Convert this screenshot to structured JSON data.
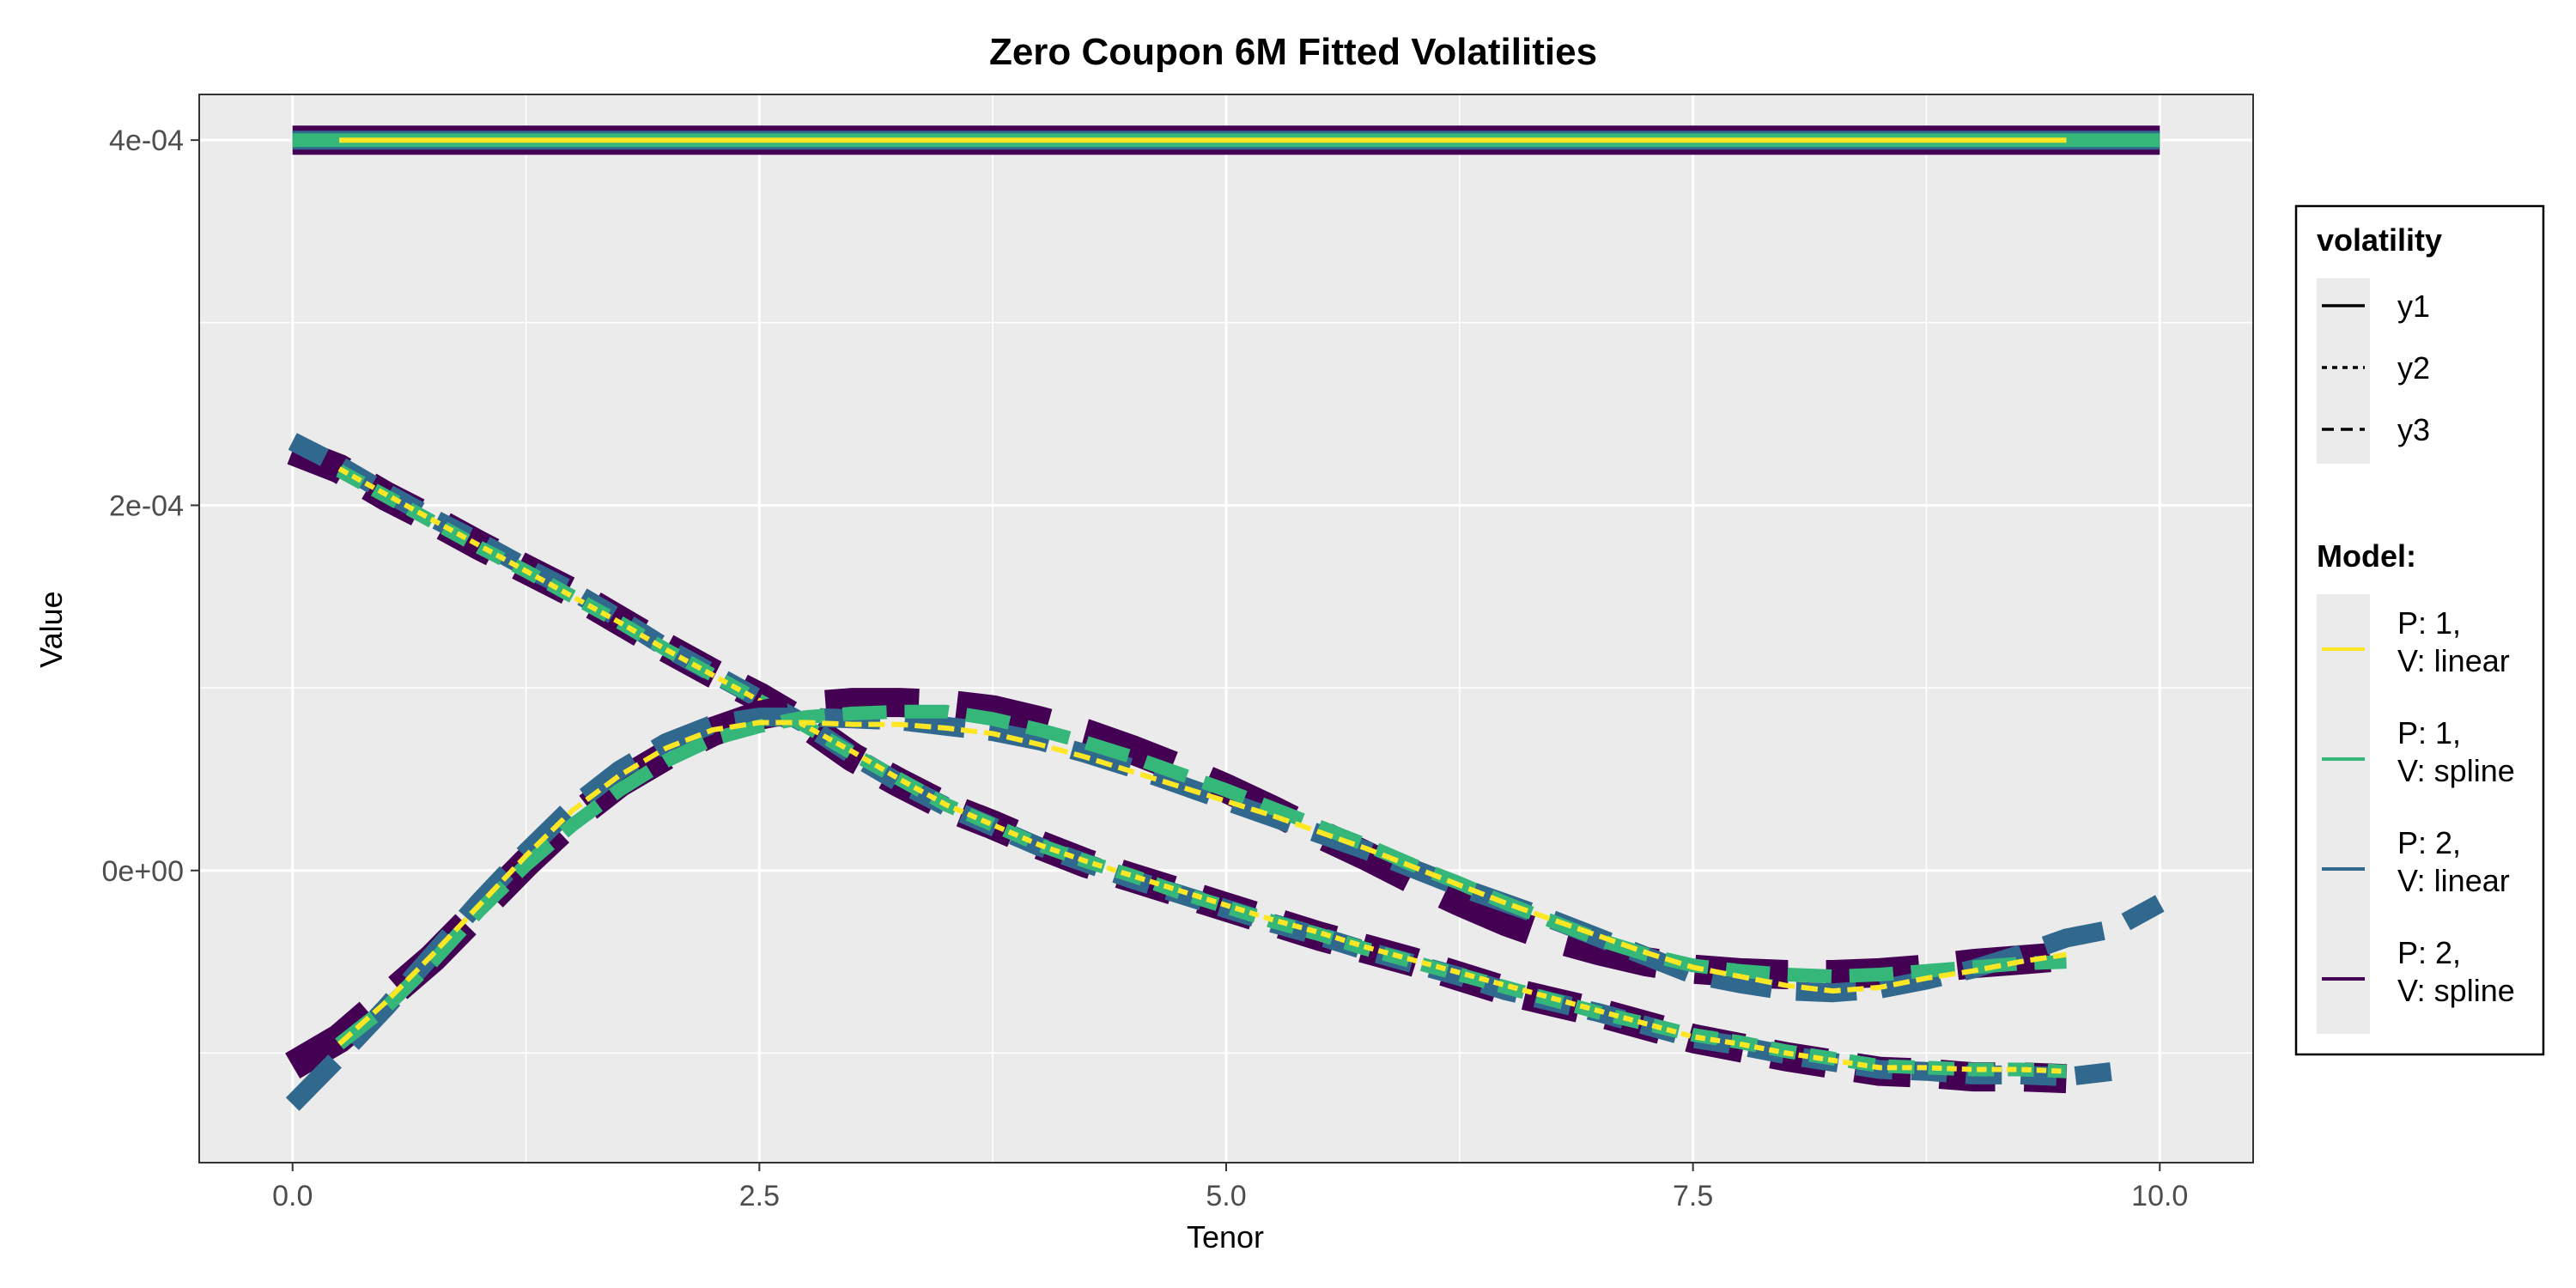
{
  "chart_data": {
    "type": "line",
    "title": "Zero Coupon 6M Fitted Volatilities",
    "xlabel": "Tenor",
    "ylabel": "Value",
    "xlim": [
      -0.5,
      10.5
    ],
    "ylim": [
      -0.00016,
      0.000425
    ],
    "x_ticks": [
      0,
      2.5,
      5,
      7.5,
      10
    ],
    "x_tick_labels": [
      "0.0",
      "2.5",
      "5.0",
      "7.5",
      "10.0"
    ],
    "y_ticks": [
      0,
      0.0002,
      0.0004
    ],
    "y_tick_labels": [
      "0e+00",
      "2e-04",
      "4e-04"
    ],
    "grid": true,
    "legend_position": "right",
    "legends": [
      {
        "title": "volatility",
        "items": [
          {
            "label": "y1",
            "linetype": "solid"
          },
          {
            "label": "y2",
            "linetype": "dotted"
          },
          {
            "label": "y3",
            "linetype": "dashed"
          }
        ]
      },
      {
        "title": "Model:",
        "items": [
          {
            "label_lines": [
              "P: 1,",
              "V: linear"
            ],
            "color": "#FDE725"
          },
          {
            "label_lines": [
              "P: 1,",
              "V: spline"
            ],
            "color": "#35B779"
          },
          {
            "label_lines": [
              "P: 2,",
              "V: linear"
            ],
            "color": "#31688E"
          },
          {
            "label_lines": [
              "P: 2,",
              "V: spline"
            ],
            "color": "#440154"
          }
        ]
      }
    ],
    "x": [
      0.0,
      0.25,
      0.5,
      0.75,
      1.0,
      1.25,
      1.5,
      1.75,
      2.0,
      2.25,
      2.5,
      2.75,
      3.0,
      3.25,
      3.5,
      3.75,
      4.0,
      4.25,
      4.5,
      4.75,
      5.0,
      5.25,
      5.5,
      5.75,
      6.0,
      6.25,
      6.5,
      6.75,
      7.0,
      7.25,
      7.5,
      7.75,
      8.0,
      8.25,
      8.5,
      8.75,
      9.0,
      9.25,
      9.5,
      9.75,
      10.0
    ],
    "series": [
      {
        "volatility": "y1",
        "model": "P: 2, V: spline",
        "values": [
          0.0004,
          0.0004,
          0.0004,
          0.0004,
          0.0004,
          0.0004,
          0.0004,
          0.0004,
          0.0004,
          0.0004,
          0.0004,
          0.0004,
          0.0004,
          0.0004,
          0.0004,
          0.0004,
          0.0004,
          0.0004,
          0.0004,
          0.0004,
          0.0004,
          0.0004,
          0.0004,
          0.0004,
          0.0004,
          0.0004,
          0.0004,
          0.0004,
          0.0004,
          0.0004,
          0.0004,
          0.0004,
          0.0004,
          0.0004,
          0.0004,
          0.0004,
          0.0004,
          0.0004,
          0.0004,
          0.0004,
          0.0004
        ]
      },
      {
        "volatility": "y1",
        "model": "P: 2, V: linear",
        "values": [
          0.0004,
          0.0004,
          0.0004,
          0.0004,
          0.0004,
          0.0004,
          0.0004,
          0.0004,
          0.0004,
          0.0004,
          0.0004,
          0.0004,
          0.0004,
          0.0004,
          0.0004,
          0.0004,
          0.0004,
          0.0004,
          0.0004,
          0.0004,
          0.0004,
          0.0004,
          0.0004,
          0.0004,
          0.0004,
          0.0004,
          0.0004,
          0.0004,
          0.0004,
          0.0004,
          0.0004,
          0.0004,
          0.0004,
          0.0004,
          0.0004,
          0.0004,
          0.0004,
          0.0004,
          0.0004,
          0.0004,
          0.0004
        ]
      },
      {
        "volatility": "y1",
        "model": "P: 1, V: spline",
        "values": [
          0.0004,
          0.0004,
          0.0004,
          0.0004,
          0.0004,
          0.0004,
          0.0004,
          0.0004,
          0.0004,
          0.0004,
          0.0004,
          0.0004,
          0.0004,
          0.0004,
          0.0004,
          0.0004,
          0.0004,
          0.0004,
          0.0004,
          0.0004,
          0.0004,
          0.0004,
          0.0004,
          0.0004,
          0.0004,
          0.0004,
          0.0004,
          0.0004,
          0.0004,
          0.0004,
          0.0004,
          0.0004,
          0.0004,
          0.0004,
          0.0004,
          0.0004,
          0.0004,
          0.0004,
          0.0004,
          0.0004,
          0.0004
        ]
      },
      {
        "volatility": "y1",
        "model": "P: 1, V: linear",
        "values": [
          null,
          0.0004,
          0.0004,
          0.0004,
          0.0004,
          0.0004,
          0.0004,
          0.0004,
          0.0004,
          0.0004,
          0.0004,
          0.0004,
          0.0004,
          0.0004,
          0.0004,
          0.0004,
          0.0004,
          0.0004,
          0.0004,
          0.0004,
          0.0004,
          0.0004,
          0.0004,
          0.0004,
          0.0004,
          0.0004,
          0.0004,
          0.0004,
          0.0004,
          0.0004,
          0.0004,
          0.0004,
          0.0004,
          0.0004,
          0.0004,
          0.0004,
          0.0004,
          0.0004,
          0.0004,
          null,
          null
        ]
      },
      {
        "volatility": "y2",
        "model": "P: 2, V: spline",
        "values": [
          0.00023,
          0.00022,
          0.000205,
          0.000192,
          0.000178,
          0.000165,
          0.000152,
          0.000137,
          0.000122,
          0.000108,
          9.5e-05,
          8e-05,
          6.2e-05,
          4.8e-05,
          3.5e-05,
          2.5e-05,
          1.4e-05,
          4e-06,
          -4e-06,
          -1.2e-05,
          -2e-05,
          -2.8e-05,
          -3.6e-05,
          -4.3e-05,
          -5e-05,
          -5.8e-05,
          -6.6e-05,
          -7.2e-05,
          -7.8e-05,
          -8.5e-05,
          -9.2e-05,
          -9.7e-05,
          -0.000102,
          -0.000106,
          -0.00011,
          -0.000111,
          -0.000113,
          -0.000113,
          -0.000114,
          null,
          -0.000116
        ]
      },
      {
        "volatility": "y2",
        "model": "P: 2, V: linear",
        "values": [
          0.000235,
          0.000222,
          0.000207,
          0.000193,
          0.00018,
          0.000166,
          0.000153,
          0.000138,
          0.000122,
          0.000108,
          9.4e-05,
          8e-05,
          6.3e-05,
          4.8e-05,
          3.5e-05,
          2.4e-05,
          1.3e-05,
          4e-06,
          -5e-06,
          -1.3e-05,
          -2.1e-05,
          -2.9e-05,
          -3.6e-05,
          -4.4e-05,
          -5.1e-05,
          -5.8e-05,
          -6.6e-05,
          -7.2e-05,
          -7.8e-05,
          -8.5e-05,
          -9.2e-05,
          -9.6e-05,
          -0.000101,
          -0.000105,
          -0.000109,
          -0.00011,
          -0.000112,
          -0.000112,
          -0.000113,
          -0.00011,
          null
        ]
      },
      {
        "volatility": "y2",
        "model": "P: 1, V: spline",
        "values": [
          null,
          0.000219,
          0.000205,
          0.000191,
          0.000177,
          0.000164,
          0.00015,
          0.000136,
          0.000121,
          0.000107,
          9.3e-05,
          7.9e-05,
          6.4e-05,
          5e-05,
          3.6e-05,
          2.5e-05,
          1.4e-05,
          5e-06,
          -3e-06,
          -1.2e-05,
          -2e-05,
          -2.8e-05,
          -3.5e-05,
          -4.3e-05,
          -5e-05,
          -5.7e-05,
          -6.4e-05,
          -7.1e-05,
          -7.8e-05,
          -8.4e-05,
          -9e-05,
          -9.4e-05,
          -9.9e-05,
          -0.000103,
          -0.000107,
          -0.000108,
          -0.000109,
          -0.000109,
          -0.00011,
          null,
          null
        ]
      },
      {
        "volatility": "y2",
        "model": "P: 1, V: linear",
        "values": [
          null,
          0.00022,
          0.000206,
          0.000192,
          0.000178,
          0.000164,
          0.00015,
          0.000136,
          0.000121,
          0.000107,
          9.3e-05,
          7.9e-05,
          6.5e-05,
          5e-05,
          3.6e-05,
          2.5e-05,
          1.4e-05,
          5e-06,
          -3e-06,
          -1.1e-05,
          -1.9e-05,
          -2.7e-05,
          -3.4e-05,
          -4.2e-05,
          -4.9e-05,
          -5.6e-05,
          -6.3e-05,
          -7e-05,
          -7.7e-05,
          -8.4e-05,
          -9.1e-05,
          -9.5e-05,
          -0.0001,
          -0.000104,
          -0.000108,
          -0.000108,
          -0.000109,
          -0.000109,
          -0.00011,
          null,
          null
        ]
      },
      {
        "volatility": "y3",
        "model": "P: 2, V: spline",
        "values": [
          -0.000107,
          -9.2e-05,
          -7e-05,
          -4.8e-05,
          -2.2e-05,
          4e-06,
          2.8e-05,
          4.8e-05,
          6.3e-05,
          7.6e-05,
          8.5e-05,
          9e-05,
          9.2e-05,
          9.2e-05,
          9.1e-05,
          8.8e-05,
          8.2e-05,
          7.5e-05,
          6.6e-05,
          5.6e-05,
          4.5e-05,
          3.3e-05,
          2e-05,
          8e-06,
          -5e-06,
          -1.7e-05,
          -2.8e-05,
          -3.7e-05,
          -4.4e-05,
          -5e-05,
          -5.4e-05,
          -5.6e-05,
          -5.7e-05,
          -5.7e-05,
          -5.6e-05,
          -5.4e-05,
          -5.1e-05,
          -4.9e-05,
          -4.7e-05,
          null,
          -4.5e-05
        ]
      },
      {
        "volatility": "y3",
        "model": "P: 2, V: linear",
        "values": [
          -0.000128,
          -0.000102,
          -7.5e-05,
          -4.6e-05,
          -1.7e-05,
          1e-05,
          3.5e-05,
          5.5e-05,
          7e-05,
          8e-05,
          8.4e-05,
          8.4e-05,
          8.3e-05,
          8.2e-05,
          7.9e-05,
          7.6e-05,
          7.1e-05,
          6.4e-05,
          5.6e-05,
          4.7e-05,
          3.8e-05,
          2.9e-05,
          2e-05,
          1.1e-05,
          1e-06,
          -9e-06,
          -1.8e-05,
          -2.7e-05,
          -3.7e-05,
          -4.7e-05,
          -5.7e-05,
          -6.2e-05,
          -6.6e-05,
          -6.7e-05,
          -6.5e-05,
          -6e-05,
          -5.4e-05,
          -4.6e-05,
          -3.7e-05,
          -3.2e-05,
          -1.8e-05
        ]
      },
      {
        "volatility": "y3",
        "model": "P: 1, V: spline",
        "values": [
          null,
          -9.5e-05,
          -7.5e-05,
          -5e-05,
          -2.2e-05,
          3e-06,
          2.5e-05,
          4.4e-05,
          6e-05,
          7.2e-05,
          7.9e-05,
          8.4e-05,
          8.6e-05,
          8.7e-05,
          8.7e-05,
          8.3e-05,
          7.7e-05,
          7e-05,
          6.2e-05,
          5.3e-05,
          4.4e-05,
          3.4e-05,
          2.4e-05,
          1.4e-05,
          3e-06,
          -7e-06,
          -1.8e-05,
          -2.8e-05,
          -3.8e-05,
          -4.6e-05,
          -5.2e-05,
          -5.5e-05,
          -5.7e-05,
          -5.8e-05,
          -5.7e-05,
          -5.5e-05,
          -5.3e-05,
          -5.1e-05,
          -5e-05,
          null,
          null
        ]
      },
      {
        "volatility": "y3",
        "model": "P: 1, V: linear",
        "values": [
          null,
          -9.5e-05,
          -7.2e-05,
          -4.6e-05,
          -1.9e-05,
          8e-06,
          3.3e-05,
          5.2e-05,
          6.7e-05,
          7.7e-05,
          8.1e-05,
          8.1e-05,
          8e-05,
          8e-05,
          7.8e-05,
          7.5e-05,
          6.9e-05,
          6.2e-05,
          5.4e-05,
          4.6e-05,
          3.8e-05,
          3e-05,
          2.1e-05,
          1.2e-05,
          2e-06,
          -8e-06,
          -1.8e-05,
          -2.7e-05,
          -3.6e-05,
          -4.5e-05,
          -5.3e-05,
          -5.8e-05,
          -6.3e-05,
          -6.6e-05,
          -6.4e-05,
          -5.9e-05,
          -5.5e-05,
          -5e-05,
          -4.6e-05,
          null,
          null
        ]
      }
    ],
    "colors": {
      "panel_bg": "#EBEBEB",
      "grid": "#FFFFFF",
      "P: 1, V: linear": "#FDE725",
      "P: 1, V: spline": "#35B779",
      "P: 2, V: linear": "#31688E",
      "P: 2, V: spline": "#440154"
    }
  }
}
